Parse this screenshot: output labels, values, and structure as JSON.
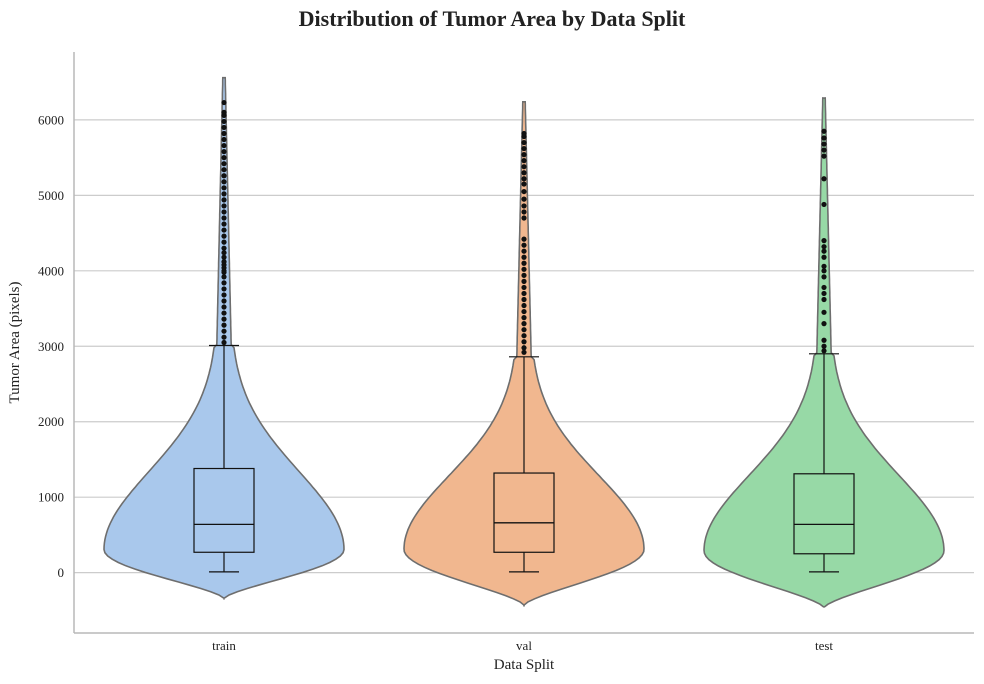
{
  "chart_data": {
    "type": "violin",
    "title": "Distribution of Tumor Area by Data Split",
    "xlabel": "Data Split",
    "ylabel": "Tumor Area (pixels)",
    "ylim": [
      -800,
      6900
    ],
    "yticks": [
      0,
      1000,
      2000,
      3000,
      4000,
      5000,
      6000
    ],
    "grid": "horizontal",
    "categories": [
      "train",
      "val",
      "test"
    ],
    "series": [
      {
        "name": "train",
        "color": "#a9c8ec",
        "box": {
          "min": 10,
          "q1": 270,
          "median": 640,
          "q3": 1380,
          "whisker_high": 3010
        },
        "violin_min": -340,
        "violin_max": 6560,
        "outliers": [
          3050,
          3120,
          3200,
          3280,
          3360,
          3440,
          3520,
          3600,
          3680,
          3760,
          3840,
          3920,
          3980,
          4000,
          4040,
          4080,
          4120,
          4180,
          4240,
          4300,
          4380,
          4460,
          4540,
          4620,
          4700,
          4780,
          4860,
          4940,
          5020,
          5100,
          5180,
          5260,
          5340,
          5420,
          5500,
          5580,
          5660,
          5740,
          5820,
          5900,
          5980,
          6060,
          6100,
          6230
        ]
      },
      {
        "name": "val",
        "color": "#f1b78f",
        "box": {
          "min": 10,
          "q1": 270,
          "median": 660,
          "q3": 1320,
          "whisker_high": 2860
        },
        "violin_min": -430,
        "violin_max": 6240,
        "outliers": [
          2920,
          2980,
          3060,
          3140,
          3220,
          3300,
          3380,
          3460,
          3540,
          3620,
          3700,
          3780,
          3860,
          3940,
          4020,
          4100,
          4180,
          4260,
          4340,
          4420,
          4700,
          4780,
          4860,
          4950,
          5050,
          5150,
          5220,
          5300,
          5380,
          5460,
          5540,
          5620,
          5700,
          5780,
          5820
        ]
      },
      {
        "name": "test",
        "color": "#97d9a6",
        "box": {
          "min": 10,
          "q1": 250,
          "median": 640,
          "q3": 1310,
          "whisker_high": 2900
        },
        "violin_min": -460,
        "violin_max": 6290,
        "outliers": [
          2940,
          3000,
          3080,
          3300,
          3450,
          3620,
          3700,
          3780,
          3920,
          4000,
          4060,
          4180,
          4260,
          4320,
          4400,
          4880,
          5220,
          5520,
          5600,
          5680,
          5760,
          5850
        ]
      }
    ]
  }
}
